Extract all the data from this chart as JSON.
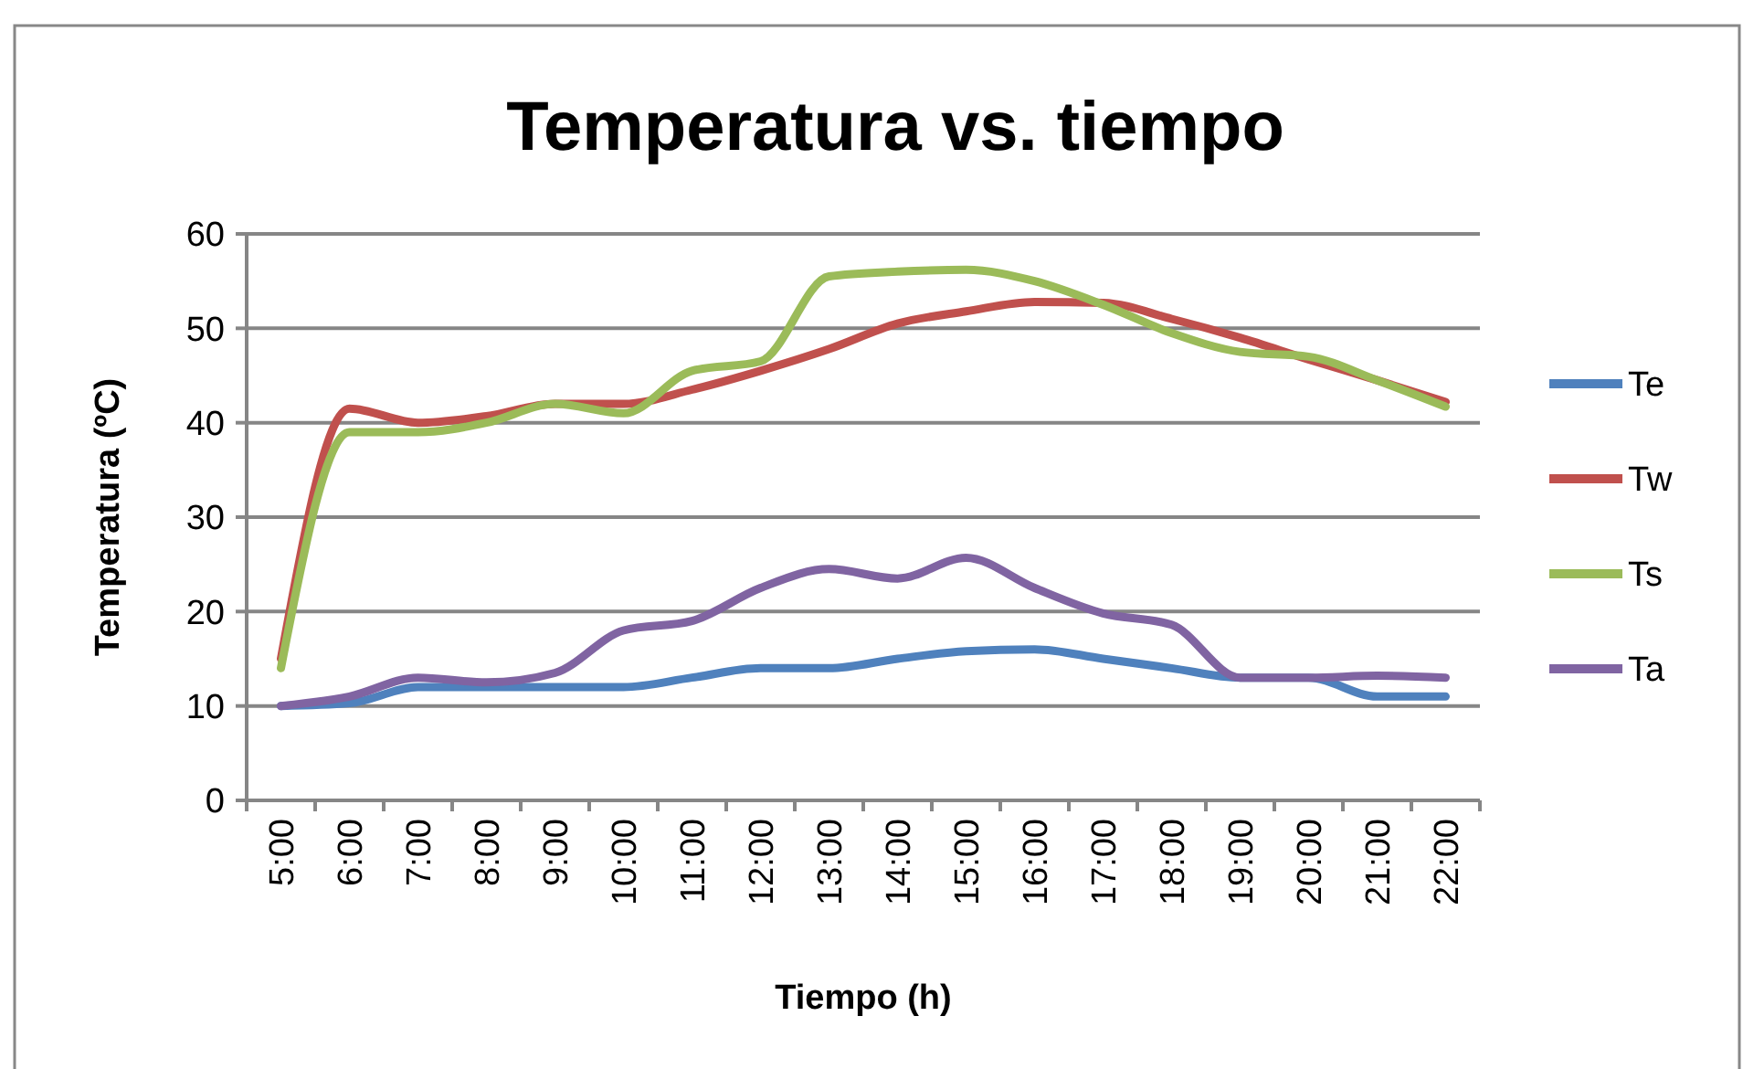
{
  "chart_data": {
    "type": "line",
    "title": "Temperatura vs. tiempo",
    "xlabel": "Tiempo (h)",
    "ylabel": "Temperatura (ºC)",
    "categories": [
      "5:00",
      "6:00",
      "7:00",
      "8:00",
      "9:00",
      "10:00",
      "11:00",
      "12:00",
      "13:00",
      "14:00",
      "15:00",
      "16:00",
      "17:00",
      "18:00",
      "19:00",
      "20:00",
      "21:00",
      "22:00"
    ],
    "series": [
      {
        "name": "Te",
        "color": "#4f81bd",
        "values": [
          10,
          10.3,
          12,
          12,
          12,
          12,
          13,
          14,
          14,
          15,
          15.8,
          16,
          15,
          14,
          13,
          13,
          11,
          11
        ]
      },
      {
        "name": "Tw",
        "color": "#c0504d",
        "values": [
          15,
          41.5,
          40,
          40.7,
          42,
          42,
          43.5,
          45.5,
          47.8,
          50.5,
          51.8,
          52.8,
          52.7,
          51,
          49,
          46.7,
          44.5,
          42.2
        ]
      },
      {
        "name": "Ts",
        "color": "#9bbb59",
        "values": [
          14,
          39,
          39,
          40,
          42,
          41,
          45.5,
          46.5,
          55.5,
          56,
          56.2,
          55,
          52.5,
          49.5,
          47.5,
          47,
          44.5,
          41.7
        ]
      },
      {
        "name": "Ta",
        "color": "#8064a2",
        "values": [
          10,
          11,
          13,
          12.5,
          13.5,
          18,
          19,
          22.5,
          24.5,
          23.5,
          25.7,
          22.5,
          19.8,
          18.6,
          13,
          13,
          13.2,
          13
        ]
      }
    ],
    "ylim": [
      0,
      60
    ],
    "yticks": [
      0,
      10,
      20,
      30,
      40,
      50,
      60
    ],
    "grid": "y",
    "legend": "right",
    "marker": "none",
    "line_style": "solid"
  }
}
